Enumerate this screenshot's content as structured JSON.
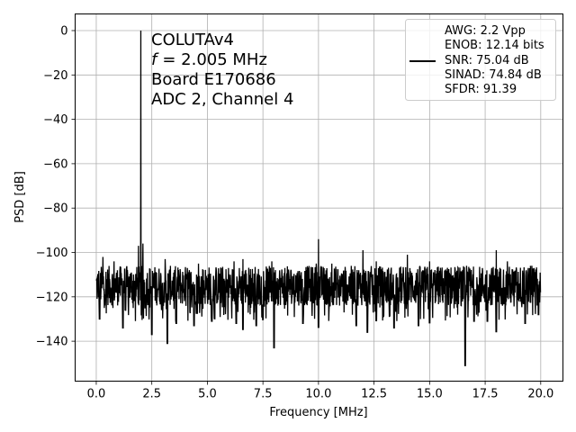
{
  "chart_data": {
    "type": "line",
    "xlabel": "Frequency [MHz]",
    "ylabel": "PSD [dB]",
    "xlim": [
      -0.95,
      21.0
    ],
    "ylim": [
      -158,
      7.5
    ],
    "xticks": [
      0.0,
      2.5,
      5.0,
      7.5,
      10.0,
      12.5,
      15.0,
      17.5,
      20.0
    ],
    "xtick_labels": [
      "0.0",
      "2.5",
      "5.0",
      "7.5",
      "10.0",
      "12.5",
      "15.0",
      "17.5",
      "20.0"
    ],
    "yticks": [
      0,
      -20,
      -40,
      -60,
      -80,
      -100,
      -120,
      -140
    ],
    "ytick_labels": [
      "0",
      "−20",
      "−40",
      "−60",
      "−80",
      "−100",
      "−120",
      "−140"
    ],
    "grid": true,
    "color": "#000000",
    "annotation": {
      "lines": [
        "COLUTAv4",
        "= 2.005 MHz",
        "Board E170686",
        "ADC 2, Channel 4"
      ],
      "symbol": "f"
    },
    "legend": {
      "placement": "top-right",
      "entries": [
        "AWG: 2.2 Vpp",
        "ENOB: 12.14 bits",
        "SNR: 75.04 dB",
        "SINAD: 74.84 dB",
        "SFDR: 91.39"
      ]
    },
    "series": [
      {
        "x_range": [
          0.0,
          20.0
        ],
        "noise_floor": -115,
        "noise_band": [
          -124,
          -106
        ],
        "noise_dips": [
          [
            0.15,
            -130
          ],
          [
            1.2,
            -134
          ],
          [
            2.5,
            -137
          ],
          [
            3.2,
            -141
          ],
          [
            3.6,
            -132
          ],
          [
            4.4,
            -133
          ],
          [
            5.2,
            -131
          ],
          [
            6.3,
            -132
          ],
          [
            6.6,
            -135
          ],
          [
            7.2,
            -133
          ],
          [
            8.0,
            -143
          ],
          [
            9.3,
            -132
          ],
          [
            10.0,
            -134
          ],
          [
            11.7,
            -133
          ],
          [
            12.2,
            -136
          ],
          [
            12.6,
            -131
          ],
          [
            13.4,
            -134
          ],
          [
            14.5,
            -133
          ],
          [
            15.0,
            -132
          ],
          [
            16.6,
            -151
          ],
          [
            17.0,
            -131
          ],
          [
            17.6,
            -131
          ],
          [
            18.0,
            -136
          ],
          [
            19.3,
            -132
          ],
          [
            19.9,
            -128
          ]
        ],
        "noise_spurs": [
          [
            0.3,
            -102
          ],
          [
            0.8,
            -104
          ],
          [
            1.9,
            -97
          ],
          [
            2.1,
            -96
          ],
          [
            3.1,
            -103
          ],
          [
            4.6,
            -105
          ],
          [
            6.2,
            -104
          ],
          [
            6.6,
            -103
          ],
          [
            7.9,
            -104
          ],
          [
            9.9,
            -105
          ],
          [
            10.0,
            -94
          ],
          [
            10.6,
            -105
          ],
          [
            12.0,
            -99
          ],
          [
            12.6,
            -104
          ],
          [
            14.0,
            -101
          ],
          [
            15.0,
            -104
          ],
          [
            18.0,
            -99
          ],
          [
            18.5,
            -104
          ],
          [
            19.6,
            -106
          ]
        ],
        "peaks": [
          [
            2.005,
            0
          ]
        ]
      }
    ]
  }
}
